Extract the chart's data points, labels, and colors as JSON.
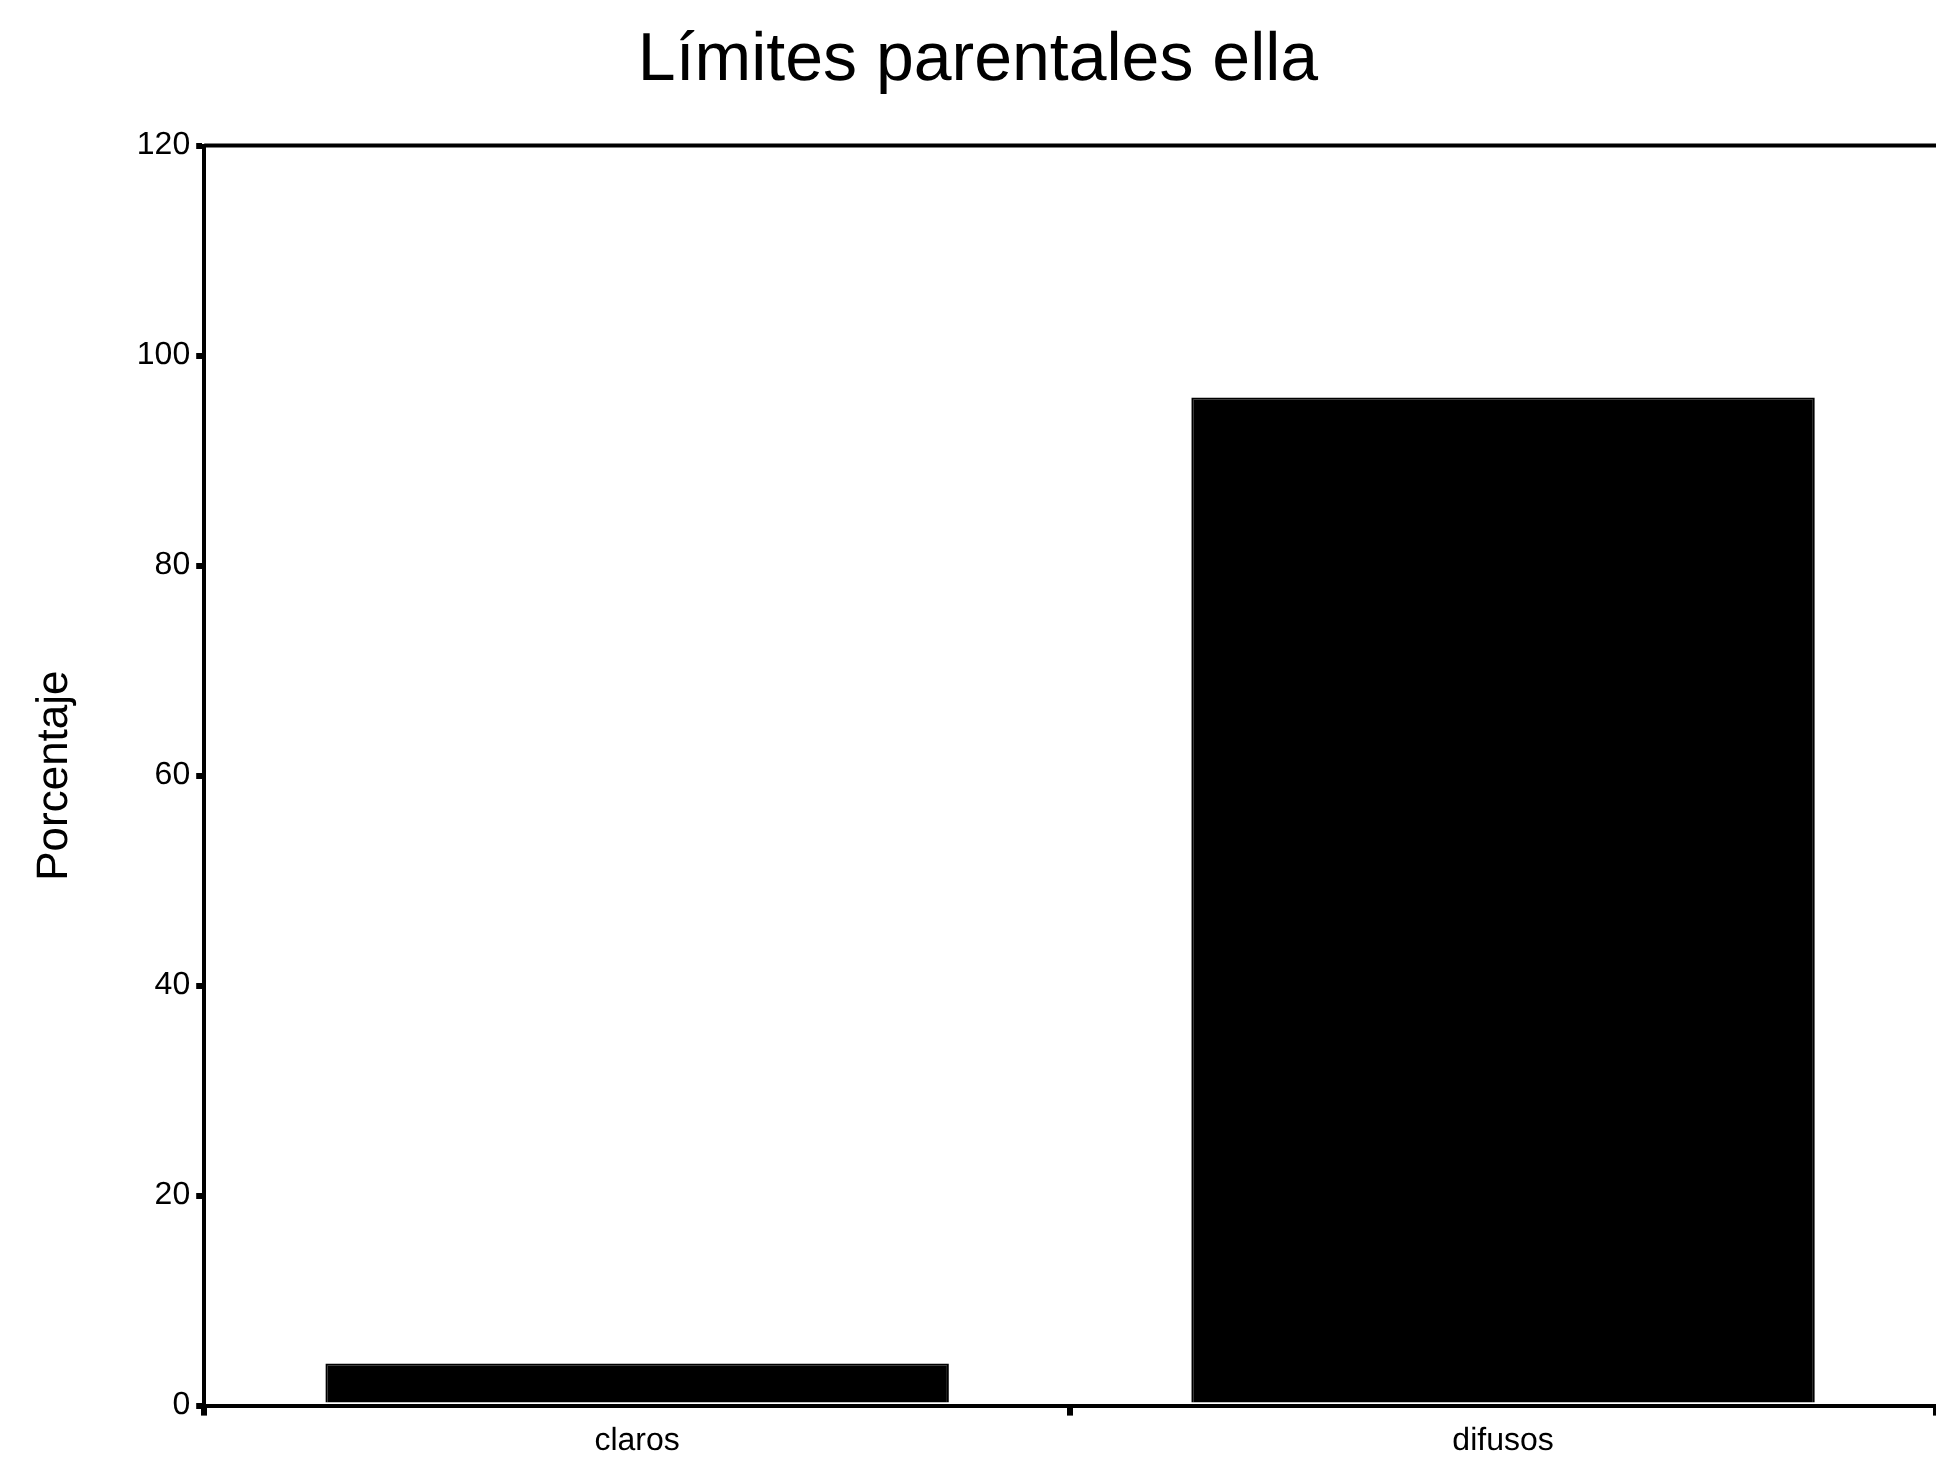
{
  "chart_data": {
    "type": "bar",
    "title": "Límites parentales ella",
    "ylabel": "Porcentaje",
    "categories": [
      "claros",
      "difusos"
    ],
    "values": [
      4,
      96
    ],
    "color": "#000000",
    "ylim": [
      0,
      120
    ],
    "yticks": [
      0,
      20,
      40,
      60,
      80,
      100,
      120
    ],
    "grid": false
  }
}
